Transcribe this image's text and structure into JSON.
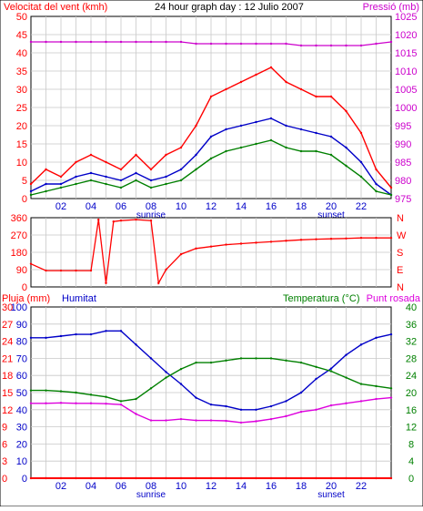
{
  "page": {
    "title": "24 hour graph day : 12 Julio 2007",
    "bg": "#ffffff",
    "frame_color": "#000000",
    "grid_color": "#c8c8c8"
  },
  "x_axis": {
    "min": 0,
    "max": 24,
    "tick_labels": [
      "02",
      "04",
      "06",
      "08",
      "10",
      "12",
      "14",
      "16",
      "18",
      "20",
      "22"
    ],
    "sunrise": {
      "label": "sunrise",
      "hour": 8
    },
    "sunset": {
      "label": "sunset",
      "hour": 20
    },
    "label_color": "#0000ff"
  },
  "chart_data": [
    {
      "type": "line",
      "panel": "wind_pressure",
      "title": "24 hour graph day : 12 Julio 2007",
      "ylabel_left": "Velocitat del vent (kmh)",
      "ylabel_right": "Pressió (mb)",
      "ylim_left": [
        0,
        50
      ],
      "ylim_right": [
        975,
        1025
      ],
      "y_ticks_left": [
        "0",
        "5",
        "10",
        "15",
        "20",
        "25",
        "30",
        "35",
        "40",
        "45",
        "50"
      ],
      "y_ticks_right": [
        "975",
        "980",
        "985",
        "990",
        "995",
        "1000",
        "1005",
        "1010",
        "1015",
        "1020",
        "1025"
      ],
      "grid": true,
      "x": [
        0,
        1,
        2,
        3,
        4,
        5,
        6,
        7,
        8,
        9,
        10,
        11,
        12,
        13,
        14,
        15,
        16,
        17,
        18,
        19,
        20,
        21,
        22,
        23,
        24
      ],
      "series": [
        {
          "key": "gust",
          "color": "#ff0000",
          "axis": "left",
          "values": [
            4,
            8,
            6,
            10,
            12,
            10,
            8,
            12,
            8,
            12,
            14,
            20,
            28,
            30,
            32,
            34,
            36,
            32,
            30,
            28,
            28,
            24,
            18,
            8,
            3
          ]
        },
        {
          "key": "avg",
          "color": "#0000c8",
          "axis": "left",
          "values": [
            2,
            4,
            4,
            6,
            7,
            6,
            5,
            7,
            5,
            6,
            8,
            12,
            17,
            19,
            20,
            21,
            22,
            20,
            19,
            18,
            17,
            14,
            10,
            4,
            1
          ]
        },
        {
          "key": "wind",
          "color": "#008000",
          "axis": "left",
          "values": [
            1,
            2,
            3,
            4,
            5,
            4,
            3,
            5,
            3,
            4,
            5,
            8,
            11,
            13,
            14,
            15,
            16,
            14,
            13,
            13,
            12,
            9,
            6,
            2,
            1
          ]
        },
        {
          "name": "Pressió (mb)",
          "key": "pressure",
          "color": "#cc00cc",
          "axis": "right",
          "values": [
            1018,
            1018,
            1018,
            1018,
            1018,
            1018,
            1018,
            1018,
            1018,
            1018,
            1018,
            1017.5,
            1017.5,
            1017.5,
            1017.5,
            1017.5,
            1017.5,
            1017.5,
            1017,
            1017,
            1017,
            1017,
            1017,
            1017.5,
            1018
          ]
        }
      ]
    },
    {
      "type": "line",
      "panel": "wind_direction",
      "ylim": [
        0,
        360
      ],
      "y_ticks": [
        "0",
        "90",
        "180",
        "270",
        "360"
      ],
      "compass_labels": [
        "N",
        "W",
        "S",
        "E",
        "N"
      ],
      "grid": true,
      "x": [
        0,
        1,
        2,
        3,
        4,
        4.5,
        5,
        5.5,
        6,
        7,
        8,
        8.5,
        9,
        10,
        11,
        12,
        13,
        14,
        15,
        16,
        17,
        18,
        19,
        20,
        21,
        22,
        23,
        24
      ],
      "series": [
        {
          "key": "direction",
          "color": "#ff0000",
          "values": [
            120,
            85,
            85,
            85,
            85,
            350,
            20,
            340,
            345,
            350,
            345,
            20,
            90,
            170,
            200,
            210,
            220,
            225,
            230,
            235,
            240,
            245,
            248,
            250,
            252,
            255,
            255,
            255
          ]
        }
      ]
    },
    {
      "type": "line",
      "panel": "rain_humidity_temp",
      "ylabel_left_rain": "Pluja (mm)",
      "ylabel_left_humidity": "Humitat",
      "ylabel_right": "Temperatura (°C)",
      "ylabel_right2": "Punt rosada",
      "ylim_humidity": [
        0,
        100
      ],
      "ylim_rain": [
        0,
        30
      ],
      "ylim_temp": [
        0,
        40
      ],
      "y_ticks_humidity": [
        "0",
        "10",
        "20",
        "30",
        "40",
        "50",
        "60",
        "70",
        "80",
        "90",
        "100"
      ],
      "y_ticks_rain": [
        "0",
        "3",
        "6",
        "9",
        "12",
        "15",
        "18",
        "21",
        "24",
        "27",
        "30"
      ],
      "y_ticks_temp": [
        "0",
        "4",
        "8",
        "12",
        "16",
        "20",
        "24",
        "28",
        "32",
        "36",
        "40"
      ],
      "grid": true,
      "x": [
        0,
        1,
        2,
        3,
        4,
        5,
        6,
        7,
        8,
        9,
        10,
        11,
        12,
        13,
        14,
        15,
        16,
        17,
        18,
        19,
        20,
        21,
        22,
        23,
        24
      ],
      "series": [
        {
          "name": "Humitat",
          "key": "humidity",
          "color": "#0000c8",
          "axis": "humidity",
          "values": [
            82,
            82,
            83,
            84,
            84,
            86,
            86,
            78,
            70,
            62,
            55,
            47,
            43,
            42,
            40,
            40,
            42,
            45,
            50,
            58,
            64,
            72,
            78,
            82,
            84
          ]
        },
        {
          "name": "Temperatura (°C)",
          "key": "temperature",
          "color": "#008000",
          "axis": "temp",
          "values": [
            20.5,
            20.5,
            20.3,
            20,
            19.5,
            19,
            18,
            18.5,
            21,
            23.5,
            25.5,
            27,
            27,
            27.5,
            28,
            28,
            28,
            27.5,
            27,
            26,
            25,
            23.5,
            22,
            21.5,
            21
          ]
        },
        {
          "name": "Punt rosada",
          "key": "dewpoint",
          "color": "#dd00dd",
          "axis": "temp",
          "values": [
            17.5,
            17.5,
            17.6,
            17.5,
            17.5,
            17.4,
            17.2,
            15,
            13.5,
            13.5,
            13.8,
            13.5,
            13.5,
            13.4,
            13,
            13.3,
            13.8,
            14.5,
            15.5,
            16,
            17,
            17.5,
            18,
            18.5,
            18.8
          ]
        },
        {
          "key": "rain",
          "color": "#ff0000",
          "axis": "rain",
          "values": [
            0,
            0,
            0,
            0,
            0,
            0,
            0,
            0,
            0,
            0,
            0,
            0,
            0,
            0,
            0,
            0,
            0,
            0,
            0,
            0,
            0,
            0,
            0,
            0,
            0
          ]
        }
      ]
    }
  ]
}
